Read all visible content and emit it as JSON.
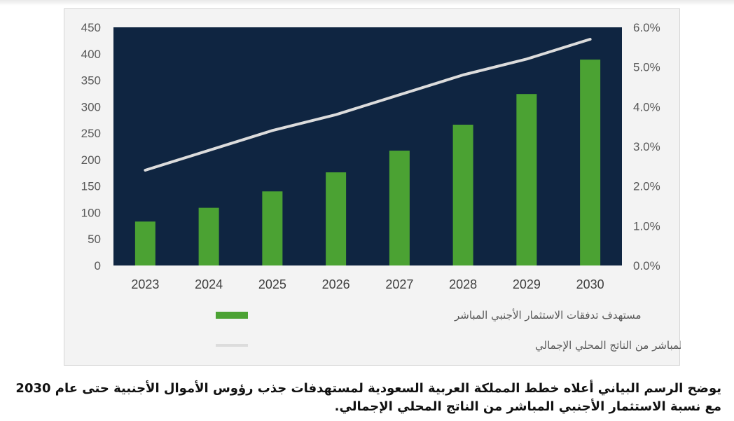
{
  "colors": {
    "plot_background": "#0f2541",
    "bar": "#4ba233",
    "line": "#dcdcdc",
    "frame_background": "#f3f3f3"
  },
  "chart_data": {
    "type": "bar+line",
    "categories": [
      "2023",
      "2024",
      "2025",
      "2026",
      "2027",
      "2028",
      "2029",
      "2030"
    ],
    "series": [
      {
        "name": "مستهدف تدفقات الاستثمار الأجنبي المباشر",
        "type": "bar",
        "axis": "left",
        "values": [
          83,
          109,
          140,
          176,
          217,
          266,
          324,
          389
        ]
      },
      {
        "name": "نسبة الاستثمار الأجنبي المباشر من الناتج المحلي الإجمالي",
        "type": "line",
        "axis": "right",
        "values": [
          2.4,
          2.9,
          3.4,
          3.8,
          4.3,
          4.8,
          5.2,
          5.7
        ]
      }
    ],
    "y_left": {
      "min": 0,
      "max": 450,
      "ticks": [
        "0",
        "50",
        "100",
        "150",
        "200",
        "250",
        "300",
        "350",
        "400",
        "450"
      ]
    },
    "y_right": {
      "min": 0,
      "max": 6,
      "ticks": [
        "0.0%",
        "1.0%",
        "2.0%",
        "3.0%",
        "4.0%",
        "5.0%",
        "6.0%"
      ]
    },
    "legend_position": "bottom",
    "grid": false
  },
  "caption": "يوضح الرسم البياني أعلاه خطط المملكة العربية السعودية لمستهدفات جذب رؤوس الأموال الأجنبية حتى عام 2030 مع نسبة الاستثمار الأجنبي المباشر من الناتج المحلي الإجمالي."
}
